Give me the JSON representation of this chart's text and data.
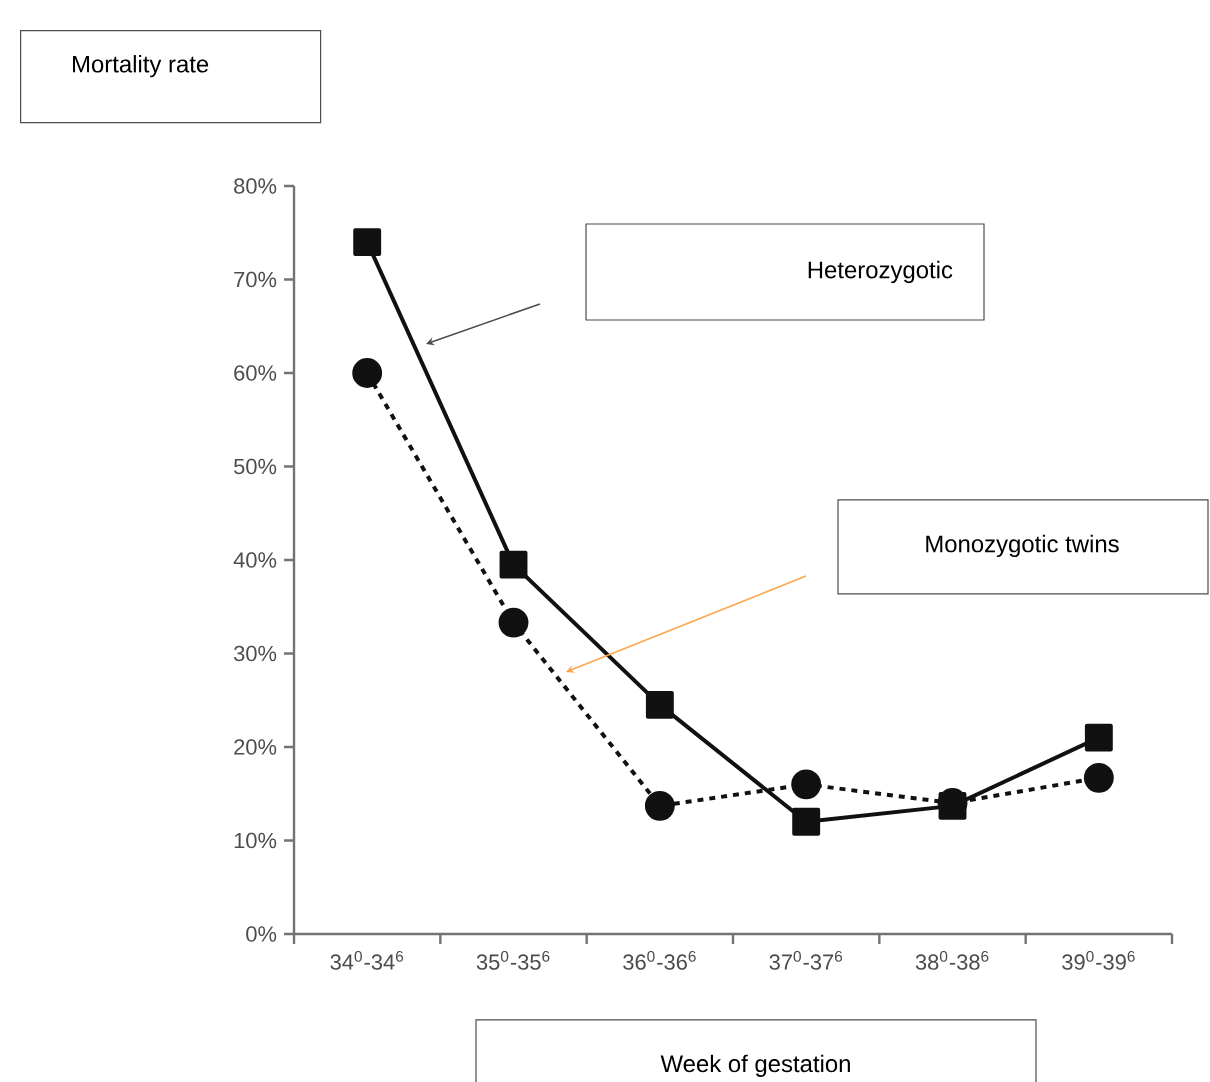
{
  "chart_data": {
    "type": "line",
    "ylabel": "Mortality rate",
    "xlabel": "Week of gestation",
    "categories": [
      "34$^{0}$-34$^{6}$",
      "35$^{0}$-35$^{6}$",
      "36$^{0}$-36$^{6}$",
      "37$^{0}$-37$^{6}$",
      "38$^{0}$-38$^{6}$",
      "39$^{0}$-39$^{6}$"
    ],
    "annotations": [
      "Heterozygotic",
      "Monozygotic twins"
    ],
    "series": [
      {
        "color": "#111111",
        "marker": "square",
        "line_style": "solid",
        "values": [
          74,
          39.5,
          24.5,
          12,
          13.7,
          21
        ]
      },
      {
        "color": "#111111",
        "marker": "circle",
        "line_style": "dashed",
        "values": [
          60,
          33.3,
          13.7,
          16,
          14,
          16.7
        ]
      }
    ],
    "ylim": [
      0,
      80
    ],
    "yticks": [
      {
        "value": 0,
        "label": "0%"
      },
      {
        "value": 10,
        "label": "10%"
      },
      {
        "value": 20,
        "label": "20%"
      },
      {
        "value": 30,
        "label": "30%"
      },
      {
        "value": 40,
        "label": "40%"
      },
      {
        "value": 50,
        "label": "50%"
      },
      {
        "value": 60,
        "label": "60%"
      },
      {
        "value": 70,
        "label": "70%"
      },
      {
        "value": 80,
        "label": "80%"
      }
    ],
    "grid": false,
    "legend": false
  }
}
